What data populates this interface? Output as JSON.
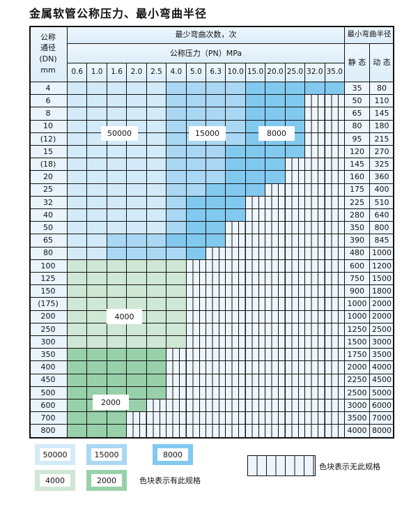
{
  "title": "金属软管公称压力、最小弯曲半径",
  "header": {
    "dn_lines": [
      "公称",
      "通径",
      "(DN)",
      "mm"
    ],
    "cycles_label": "最少弯曲次数，次",
    "pressure_label": "公称压力（PN）MPa",
    "pressures": [
      "0.6",
      "1.0",
      "1.6",
      "2.0",
      "2.5",
      "4.0",
      "5.0",
      "6.3",
      "10.0",
      "15.0",
      "20.0",
      "25.0",
      "32.0",
      "35.0"
    ],
    "radius_label": "最小弯曲半径",
    "static_label": "静 态",
    "dynamic_label": "动 态"
  },
  "colors": {
    "L": "#d3eaf9",
    "M": "#aad8f4",
    "D": "#82c9ef",
    "G": "#cfe7d5",
    "H": "#98d0aa"
  },
  "rows": [
    {
      "dn": "4",
      "static": "35",
      "dynamic": "80",
      "fill": "LLLLLMMMMDDDDD"
    },
    {
      "dn": "6",
      "static": "50",
      "dynamic": "110",
      "fill": "LLLLLMMMMDDD"
    },
    {
      "dn": "8",
      "static": "65",
      "dynamic": "145",
      "fill": "LLLLLMMMMDDD"
    },
    {
      "dn": "10",
      "static": "80",
      "dynamic": "180",
      "fill": "LLLLLMMMMDDD"
    },
    {
      "dn": "(12)",
      "static": "95",
      "dynamic": "215",
      "fill": "LLLLLMMMMDDD"
    },
    {
      "dn": "15",
      "static": "120",
      "dynamic": "270",
      "fill": "LLLLLMMMDDDD"
    },
    {
      "dn": "(18)",
      "static": "145",
      "dynamic": "325",
      "fill": "LLLLLMMMDDD"
    },
    {
      "dn": "20",
      "static": "160",
      "dynamic": "360",
      "fill": "LLLLLMMMDDD"
    },
    {
      "dn": "25",
      "static": "175",
      "dynamic": "400",
      "fill": "LLLLLMMDDD"
    },
    {
      "dn": "32",
      "static": "225",
      "dynamic": "510",
      "fill": "LLLLLMDDD"
    },
    {
      "dn": "40",
      "static": "280",
      "dynamic": "640",
      "fill": "LLLLLMDDD"
    },
    {
      "dn": "50",
      "static": "350",
      "dynamic": "800",
      "fill": "LLLLLMDD"
    },
    {
      "dn": "65",
      "static": "390",
      "dynamic": "845",
      "fill": "LLMMMDDD"
    },
    {
      "dn": "80",
      "static": "480",
      "dynamic": "1000",
      "fill": "LLMMMMD"
    },
    {
      "dn": "100",
      "static": "600",
      "dynamic": "1200",
      "fill": "GGGGGG"
    },
    {
      "dn": "125",
      "static": "750",
      "dynamic": "1500",
      "fill": "GGGGGG"
    },
    {
      "dn": "150",
      "static": "900",
      "dynamic": "1800",
      "fill": "GGGGGG"
    },
    {
      "dn": "(175)",
      "static": "1000",
      "dynamic": "2000",
      "fill": "GGGGGG"
    },
    {
      "dn": "200",
      "static": "1000",
      "dynamic": "2000",
      "fill": "GGGGGG"
    },
    {
      "dn": "250",
      "static": "1250",
      "dynamic": "2500",
      "fill": "GGGGGG"
    },
    {
      "dn": "300",
      "static": "1500",
      "dynamic": "3000",
      "fill": "GGGGGG"
    },
    {
      "dn": "350",
      "static": "1750",
      "dynamic": "3500",
      "fill": "HHHHH"
    },
    {
      "dn": "400",
      "static": "2000",
      "dynamic": "4000",
      "fill": "HHHHH"
    },
    {
      "dn": "450",
      "static": "2250",
      "dynamic": "4500",
      "fill": "HHHHH"
    },
    {
      "dn": "500",
      "static": "2500",
      "dynamic": "5000",
      "fill": "HHHHH"
    },
    {
      "dn": "600",
      "static": "3000",
      "dynamic": "6000",
      "fill": "HHHH"
    },
    {
      "dn": "700",
      "static": "3500",
      "dynamic": "7000",
      "fill": "HHH"
    },
    {
      "dn": "800",
      "static": "4000",
      "dynamic": "8000",
      "fill": "HHH"
    }
  ],
  "region_labels": [
    "50000",
    "15000",
    "8000",
    "4000",
    "2000"
  ],
  "legend": {
    "items": [
      {
        "label": "50000",
        "color": "L"
      },
      {
        "label": "15000",
        "color": "M"
      },
      {
        "label": "8000",
        "color": "D"
      },
      {
        "label": "4000",
        "color": "G"
      },
      {
        "label": "2000",
        "color": "H"
      }
    ],
    "has_spec_text": "色块表示有此规格",
    "no_spec_text": "色块表示无此规格"
  }
}
